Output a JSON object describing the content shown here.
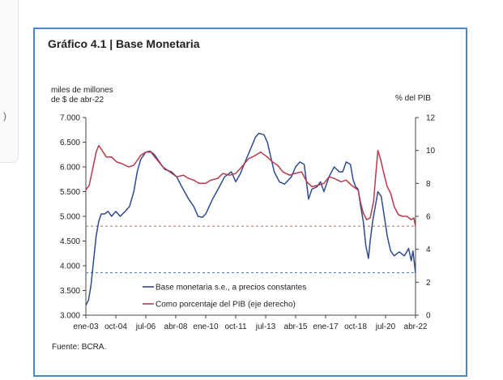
{
  "chart_data": {
    "type": "line",
    "title": "Gráfico 4.1 | Base Monetaria",
    "ylabel_left": [
      "miles de millones",
      "de $ de abr-22"
    ],
    "ylabel_right": "% del PIB",
    "source": "Fuente: BCRA.",
    "y_left": {
      "min": 3000,
      "max": 7000,
      "ticks": [
        "3.000",
        "3.500",
        "4.000",
        "4.500",
        "5.000",
        "5.500",
        "6.000",
        "6.500",
        "7.000"
      ]
    },
    "y_right": {
      "min": 0,
      "max": 12,
      "ticks": [
        "0",
        "2",
        "4",
        "6",
        "8",
        "10",
        "12"
      ]
    },
    "x": {
      "min": 2003.0,
      "max": 2022.25,
      "tick_labels": [
        "ene-03",
        "oct-04",
        "jul-06",
        "abr-08",
        "ene-10",
        "oct-11",
        "jul-13",
        "abr-15",
        "ene-17",
        "oct-18",
        "jul-20",
        "abr-22"
      ],
      "tick_values": [
        2003.0,
        2004.75,
        2006.5,
        2008.25,
        2010.0,
        2011.75,
        2013.5,
        2015.25,
        2017.0,
        2018.75,
        2020.5,
        2022.25
      ]
    },
    "reference_lines_left_axis": [
      4800,
      3860
    ],
    "series": [
      {
        "name": "Base monetaria s.e., a precios constantes",
        "axis": "left",
        "color": "#2f4a8f",
        "points": [
          [
            2003.0,
            3200
          ],
          [
            2003.15,
            3300
          ],
          [
            2003.3,
            3600
          ],
          [
            2003.45,
            4100
          ],
          [
            2003.6,
            4600
          ],
          [
            2003.75,
            4900
          ],
          [
            2003.9,
            5050
          ],
          [
            2004.1,
            5050
          ],
          [
            2004.3,
            5100
          ],
          [
            2004.5,
            5000
          ],
          [
            2004.75,
            5100
          ],
          [
            2005.0,
            5000
          ],
          [
            2005.3,
            5100
          ],
          [
            2005.55,
            5200
          ],
          [
            2005.8,
            5500
          ],
          [
            2006.0,
            5900
          ],
          [
            2006.2,
            6150
          ],
          [
            2006.5,
            6300
          ],
          [
            2006.75,
            6320
          ],
          [
            2007.0,
            6250
          ],
          [
            2007.3,
            6100
          ],
          [
            2007.6,
            5950
          ],
          [
            2008.0,
            5900
          ],
          [
            2008.3,
            5800
          ],
          [
            2008.6,
            5600
          ],
          [
            2009.0,
            5350
          ],
          [
            2009.3,
            5200
          ],
          [
            2009.55,
            5000
          ],
          [
            2009.8,
            4980
          ],
          [
            2010.0,
            5050
          ],
          [
            2010.4,
            5350
          ],
          [
            2010.8,
            5600
          ],
          [
            2011.1,
            5800
          ],
          [
            2011.5,
            5900
          ],
          [
            2011.75,
            5700
          ],
          [
            2012.0,
            5850
          ],
          [
            2012.3,
            6100
          ],
          [
            2012.6,
            6350
          ],
          [
            2012.9,
            6600
          ],
          [
            2013.1,
            6680
          ],
          [
            2013.4,
            6650
          ],
          [
            2013.6,
            6500
          ],
          [
            2013.8,
            6200
          ],
          [
            2014.0,
            5900
          ],
          [
            2014.3,
            5700
          ],
          [
            2014.6,
            5650
          ],
          [
            2015.0,
            5800
          ],
          [
            2015.25,
            6000
          ],
          [
            2015.5,
            6100
          ],
          [
            2015.75,
            6050
          ],
          [
            2015.9,
            5650
          ],
          [
            2016.0,
            5350
          ],
          [
            2016.2,
            5550
          ],
          [
            2016.5,
            5600
          ],
          [
            2016.7,
            5700
          ],
          [
            2016.9,
            5500
          ],
          [
            2017.2,
            5800
          ],
          [
            2017.5,
            6000
          ],
          [
            2017.8,
            5900
          ],
          [
            2018.0,
            5900
          ],
          [
            2018.2,
            6100
          ],
          [
            2018.45,
            6050
          ],
          [
            2018.6,
            5750
          ],
          [
            2018.75,
            5600
          ],
          [
            2018.9,
            5550
          ],
          [
            2019.05,
            5200
          ],
          [
            2019.2,
            4900
          ],
          [
            2019.35,
            4400
          ],
          [
            2019.5,
            4150
          ],
          [
            2019.6,
            4500
          ],
          [
            2019.75,
            4900
          ],
          [
            2019.95,
            5300
          ],
          [
            2020.05,
            5500
          ],
          [
            2020.25,
            5400
          ],
          [
            2020.45,
            4950
          ],
          [
            2020.6,
            4600
          ],
          [
            2020.8,
            4300
          ],
          [
            2021.0,
            4200
          ],
          [
            2021.3,
            4280
          ],
          [
            2021.6,
            4200
          ],
          [
            2021.85,
            4350
          ],
          [
            2022.0,
            4100
          ],
          [
            2022.1,
            4300
          ],
          [
            2022.25,
            3850
          ]
        ]
      },
      {
        "name": "Como porcentaje del PIB  (eje derecho)",
        "axis": "right",
        "color": "#b83a4b",
        "points": [
          [
            2003.0,
            7.6
          ],
          [
            2003.2,
            7.9
          ],
          [
            2003.4,
            8.9
          ],
          [
            2003.6,
            9.9
          ],
          [
            2003.75,
            10.3
          ],
          [
            2003.95,
            10.0
          ],
          [
            2004.2,
            9.6
          ],
          [
            2004.5,
            9.6
          ],
          [
            2004.8,
            9.3
          ],
          [
            2005.1,
            9.2
          ],
          [
            2005.5,
            9.0
          ],
          [
            2005.8,
            9.1
          ],
          [
            2006.2,
            9.7
          ],
          [
            2006.5,
            9.9
          ],
          [
            2006.8,
            9.9
          ],
          [
            2007.1,
            9.5
          ],
          [
            2007.5,
            9.0
          ],
          [
            2007.9,
            8.7
          ],
          [
            2008.3,
            8.4
          ],
          [
            2008.7,
            8.5
          ],
          [
            2009.0,
            8.3
          ],
          [
            2009.3,
            8.2
          ],
          [
            2009.6,
            8.0
          ],
          [
            2010.0,
            8.0
          ],
          [
            2010.3,
            8.2
          ],
          [
            2010.7,
            8.3
          ],
          [
            2011.0,
            8.6
          ],
          [
            2011.4,
            8.5
          ],
          [
            2011.75,
            8.6
          ],
          [
            2012.1,
            9.0
          ],
          [
            2012.5,
            9.5
          ],
          [
            2012.9,
            9.7
          ],
          [
            2013.2,
            9.9
          ],
          [
            2013.6,
            9.6
          ],
          [
            2013.9,
            9.3
          ],
          [
            2014.2,
            9.1
          ],
          [
            2014.5,
            8.7
          ],
          [
            2014.9,
            8.5
          ],
          [
            2015.2,
            8.6
          ],
          [
            2015.6,
            8.7
          ],
          [
            2015.9,
            8.1
          ],
          [
            2016.2,
            7.8
          ],
          [
            2016.6,
            7.9
          ],
          [
            2016.9,
            8.0
          ],
          [
            2017.2,
            8.4
          ],
          [
            2017.5,
            8.3
          ],
          [
            2017.9,
            8.1
          ],
          [
            2018.2,
            8.2
          ],
          [
            2018.5,
            7.9
          ],
          [
            2018.75,
            7.7
          ],
          [
            2018.9,
            7.6
          ],
          [
            2019.05,
            6.8
          ],
          [
            2019.2,
            6.2
          ],
          [
            2019.4,
            5.8
          ],
          [
            2019.6,
            5.9
          ],
          [
            2019.8,
            6.9
          ],
          [
            2019.95,
            8.8
          ],
          [
            2020.05,
            10.0
          ],
          [
            2020.2,
            9.5
          ],
          [
            2020.4,
            8.6
          ],
          [
            2020.6,
            7.8
          ],
          [
            2020.8,
            7.4
          ],
          [
            2021.0,
            6.6
          ],
          [
            2021.25,
            6.1
          ],
          [
            2021.5,
            6.0
          ],
          [
            2021.75,
            6.0
          ],
          [
            2022.0,
            5.8
          ],
          [
            2022.15,
            5.9
          ],
          [
            2022.25,
            5.4
          ]
        ]
      }
    ]
  }
}
